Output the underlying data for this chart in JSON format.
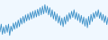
{
  "line_color": "#3a8fc7",
  "background_color": "#f0f8ff",
  "values": [
    -2.5,
    -1.0,
    -3.0,
    -1.5,
    -2.8,
    -1.2,
    -2.6,
    -1.0,
    -3.2,
    -1.4,
    -2.4,
    -0.8,
    -2.0,
    -0.6,
    -1.8,
    -0.2,
    -1.5,
    0.2,
    -1.0,
    0.5,
    -0.8,
    0.8,
    -0.4,
    1.0,
    -0.2,
    1.3,
    0.0,
    1.5,
    0.2,
    1.7,
    0.4,
    1.9,
    0.6,
    2.2,
    0.8,
    2.5,
    1.0,
    2.8,
    1.2,
    2.5,
    0.8,
    2.2,
    0.4,
    1.8,
    0.0,
    1.4,
    -0.4,
    1.0,
    -0.8,
    0.6,
    -1.2,
    0.2,
    -1.5,
    0.4,
    -1.0,
    0.8,
    -0.5,
    1.2,
    0.0,
    1.5,
    0.3,
    1.8,
    0.0,
    1.3,
    -0.3,
    1.0,
    -0.7,
    0.7,
    -1.0,
    0.4,
    -1.4,
    0.1,
    -1.7,
    0.5,
    -1.1,
    0.9,
    -0.5,
    1.2,
    0.1,
    1.5,
    0.4,
    1.8,
    0.1,
    1.3,
    -0.3,
    0.9,
    -0.7,
    0.6,
    -1.1,
    0.3
  ],
  "linewidth": 0.6
}
